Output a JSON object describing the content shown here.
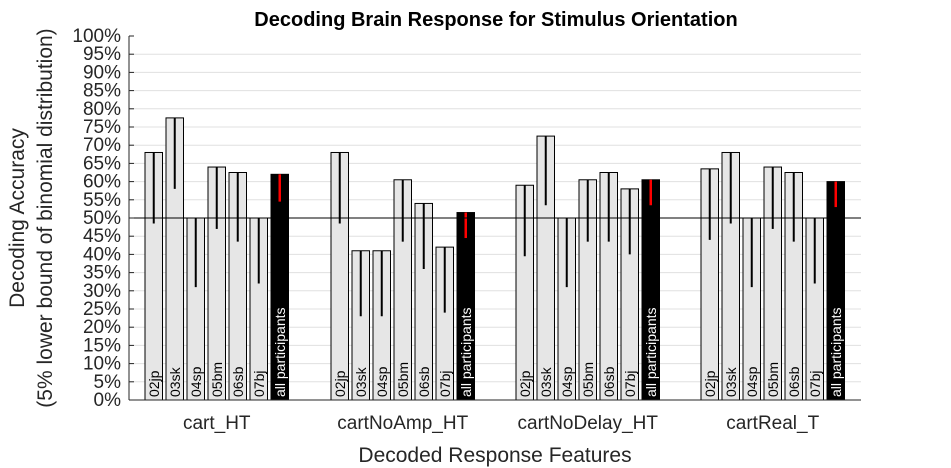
{
  "chart_data": {
    "type": "bar",
    "title": "Decoding Brain Response for Stimulus Orientation",
    "xlabel": "Decoded Response Features",
    "ylabel_line1": "Decoding Accuracy",
    "ylabel_line2": "(5% lower bound of binomial distribution)",
    "ylim": [
      0,
      100
    ],
    "yticks": [
      "0%",
      "5%",
      "10%",
      "15%",
      "20%",
      "25%",
      "30%",
      "35%",
      "40%",
      "45%",
      "50%",
      "55%",
      "60%",
      "65%",
      "70%",
      "75%",
      "80%",
      "85%",
      "90%",
      "95%",
      "100%"
    ],
    "grid": true,
    "chance_level": 50,
    "categories": [
      "cart_HT",
      "cartNoAmp_HT",
      "cartNoDelay_HT",
      "cartReal_T"
    ],
    "series": [
      {
        "name": "02jp",
        "values": [
          68,
          68,
          59,
          63.5
        ],
        "lower": [
          48.5,
          48.5,
          39.5,
          44
        ]
      },
      {
        "name": "03sk",
        "values": [
          77.5,
          41,
          72.5,
          68
        ],
        "lower": [
          58,
          23,
          53.5,
          48.5
        ]
      },
      {
        "name": "04sp",
        "values": [
          50,
          41,
          50,
          50
        ],
        "lower": [
          31,
          23,
          31,
          31
        ]
      },
      {
        "name": "05bm",
        "values": [
          64,
          60.5,
          60.5,
          64
        ],
        "lower": [
          47,
          43.5,
          43.5,
          47
        ]
      },
      {
        "name": "06sb",
        "values": [
          62.5,
          54,
          62.5,
          62.5
        ],
        "lower": [
          43.5,
          36,
          43.5,
          43.5
        ]
      },
      {
        "name": "07bj",
        "values": [
          50,
          42,
          58,
          50
        ],
        "lower": [
          32,
          24,
          40,
          32
        ]
      },
      {
        "name": "all participants",
        "values": [
          62,
          51.5,
          60.5,
          60
        ],
        "lower": [
          54.5,
          44.5,
          53.5,
          53
        ]
      }
    ],
    "colors": {
      "bar": "#e6e6e6",
      "all_participants_bar": "#000000",
      "error_line": "#000000",
      "all_participants_error": "#ff0000",
      "grid": "#e0e0e0",
      "axis": "#262626"
    }
  }
}
